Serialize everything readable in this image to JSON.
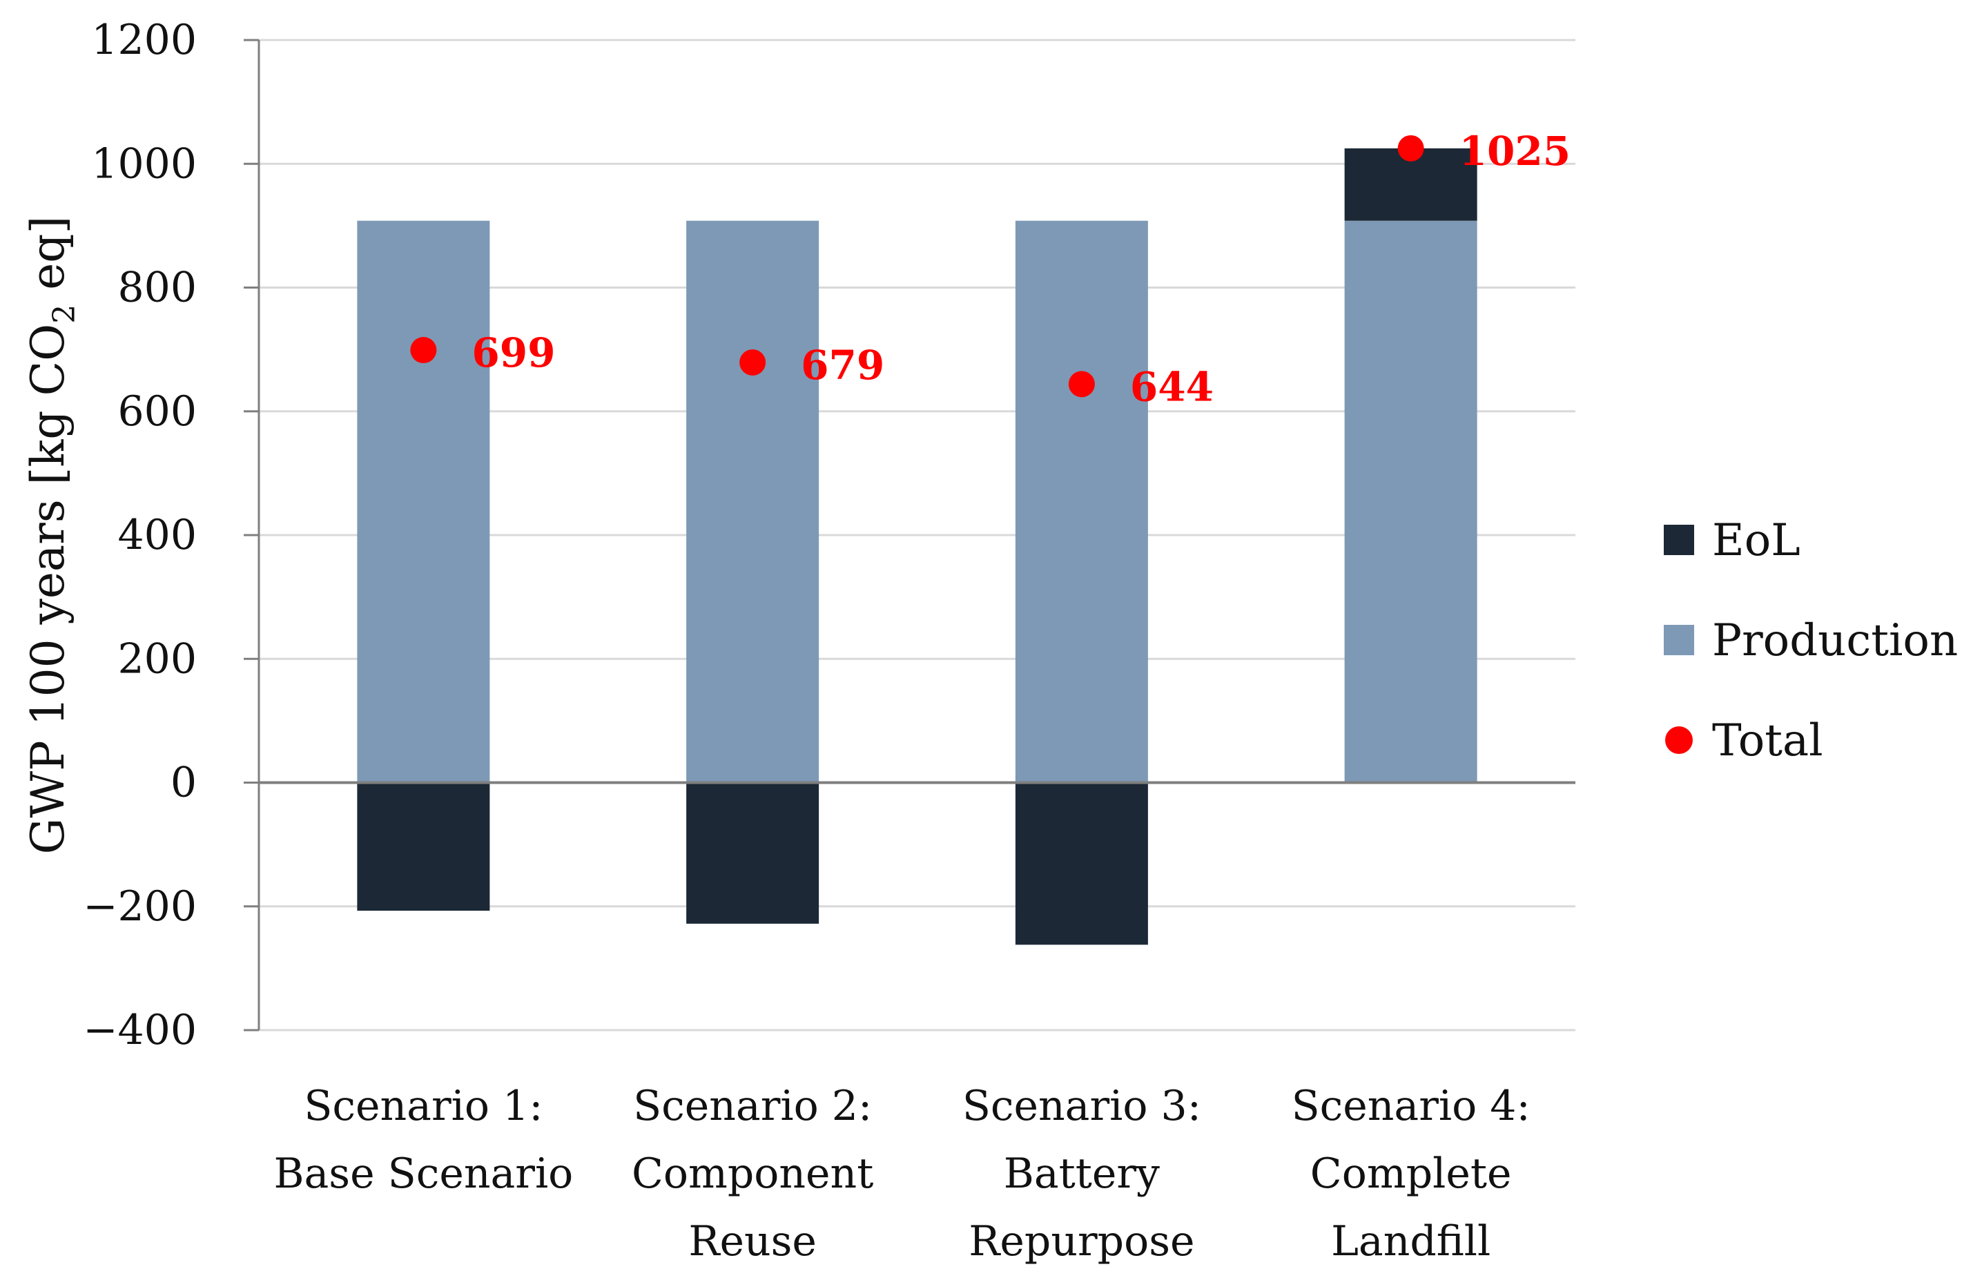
{
  "chart_data": {
    "type": "bar",
    "stacked": true,
    "title": "",
    "ylabel_parts": [
      "GWP 100 years [kg CO",
      "2",
      " eq]"
    ],
    "ylabel": "GWP 100 years [kg CO2 eq]",
    "xlabel": "",
    "ylim": [
      -400,
      1200
    ],
    "yticks": [
      1200,
      1000,
      800,
      600,
      400,
      200,
      0,
      -200,
      -400
    ],
    "ytick_labels": [
      "1200",
      "1000",
      "800",
      "600",
      "400",
      "200",
      "0",
      "−200",
      "−400"
    ],
    "grid": true,
    "categories": [
      [
        "Scenario 1:",
        "Base Scenario"
      ],
      [
        "Scenario 2:",
        "Component",
        "Reuse"
      ],
      [
        "Scenario 3:",
        "Battery",
        "Repurpose"
      ],
      [
        "Scenario 4:",
        "Complete",
        "Landfill"
      ]
    ],
    "series": [
      {
        "name": "EoL",
        "kind": "bar",
        "color": "#1c2835",
        "values": [
          -207,
          -228,
          -262,
          117
        ]
      },
      {
        "name": "Production",
        "kind": "bar",
        "color": "#7d99b5",
        "values": [
          908,
          908,
          908,
          908
        ]
      },
      {
        "name": "Total",
        "kind": "point",
        "color": "#ff0000",
        "values": [
          699,
          679,
          644,
          1025
        ]
      }
    ],
    "data_labels": [
      "699",
      "679",
      "644",
      "1025"
    ],
    "legend": {
      "position": "right",
      "items": [
        {
          "label": "EoL",
          "marker": "square",
          "color": "#1c2835"
        },
        {
          "label": "Production",
          "marker": "square",
          "color": "#7d99b5"
        },
        {
          "label": "Total",
          "marker": "circle",
          "color": "#ff0000"
        }
      ]
    }
  }
}
